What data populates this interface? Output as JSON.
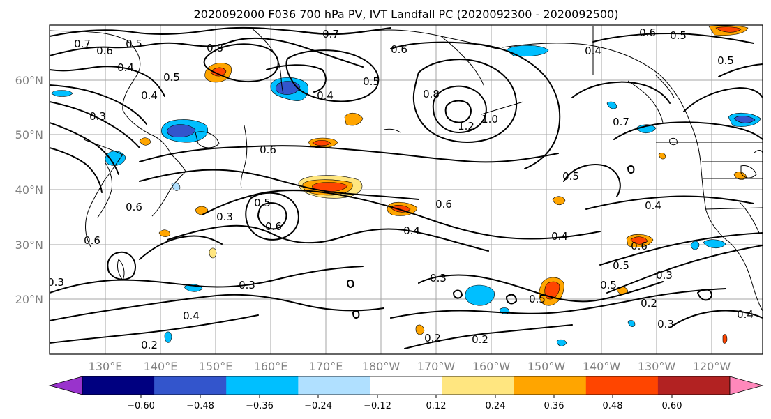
{
  "title": "2020092000 F036 700 hPa PV, IVT Landfall PC (2020092300 - 2020092500)",
  "lat_labels": [
    "60°N",
    "50°N",
    "40°N",
    "30°N",
    "20°N"
  ],
  "lon_labels": [
    "130°E",
    "140°E",
    "150°E",
    "160°E",
    "170°E",
    "180°W",
    "170°W",
    "160°W",
    "150°W",
    "140°W",
    "130°W",
    "120°W"
  ],
  "contour_labels": [
    "0.7",
    "0.6",
    "0.5",
    "0.4",
    "0.8",
    "0.7",
    "0.6",
    "0.5",
    "0.5",
    "0.4",
    "0.3",
    "0.4",
    "0.6",
    "0.8",
    "1.2",
    "1.0",
    "0.7",
    "0.4",
    "0.6",
    "0.5",
    "0.5",
    "0.4",
    "0.3",
    "0.6",
    "0.5",
    "0.6",
    "0.4",
    "0.6",
    "0.4",
    "0.6",
    "0.5",
    "0.5",
    "0.3",
    "0.3",
    "0.3",
    "0.5",
    "0.3",
    "0.2",
    "0.4",
    "0.2",
    "0.2",
    "0.2",
    "0.3",
    "0.4",
    "0.6",
    "0.5"
  ],
  "colorbar": {
    "colors": [
      "#9933cc",
      "#000080",
      "#3355cc",
      "#00bfff",
      "#b0e0ff",
      "#ffffff",
      "#ffe680",
      "#ffa500",
      "#ff4500",
      "#b22222",
      "#ff88bb"
    ],
    "tick_labels": [
      "−0.60",
      "−0.48",
      "−0.36",
      "−0.24",
      "−0.12",
      "0.12",
      "0.24",
      "0.36",
      "0.48",
      "0.60"
    ]
  },
  "map": {
    "projection": "cylindrical",
    "lon_range": "120°E–130°W",
    "lat_range": "10°N–70°N",
    "gridlines": true,
    "contour_field": "700 hPa PV",
    "shaded_field": "IVT Landfall PC"
  }
}
